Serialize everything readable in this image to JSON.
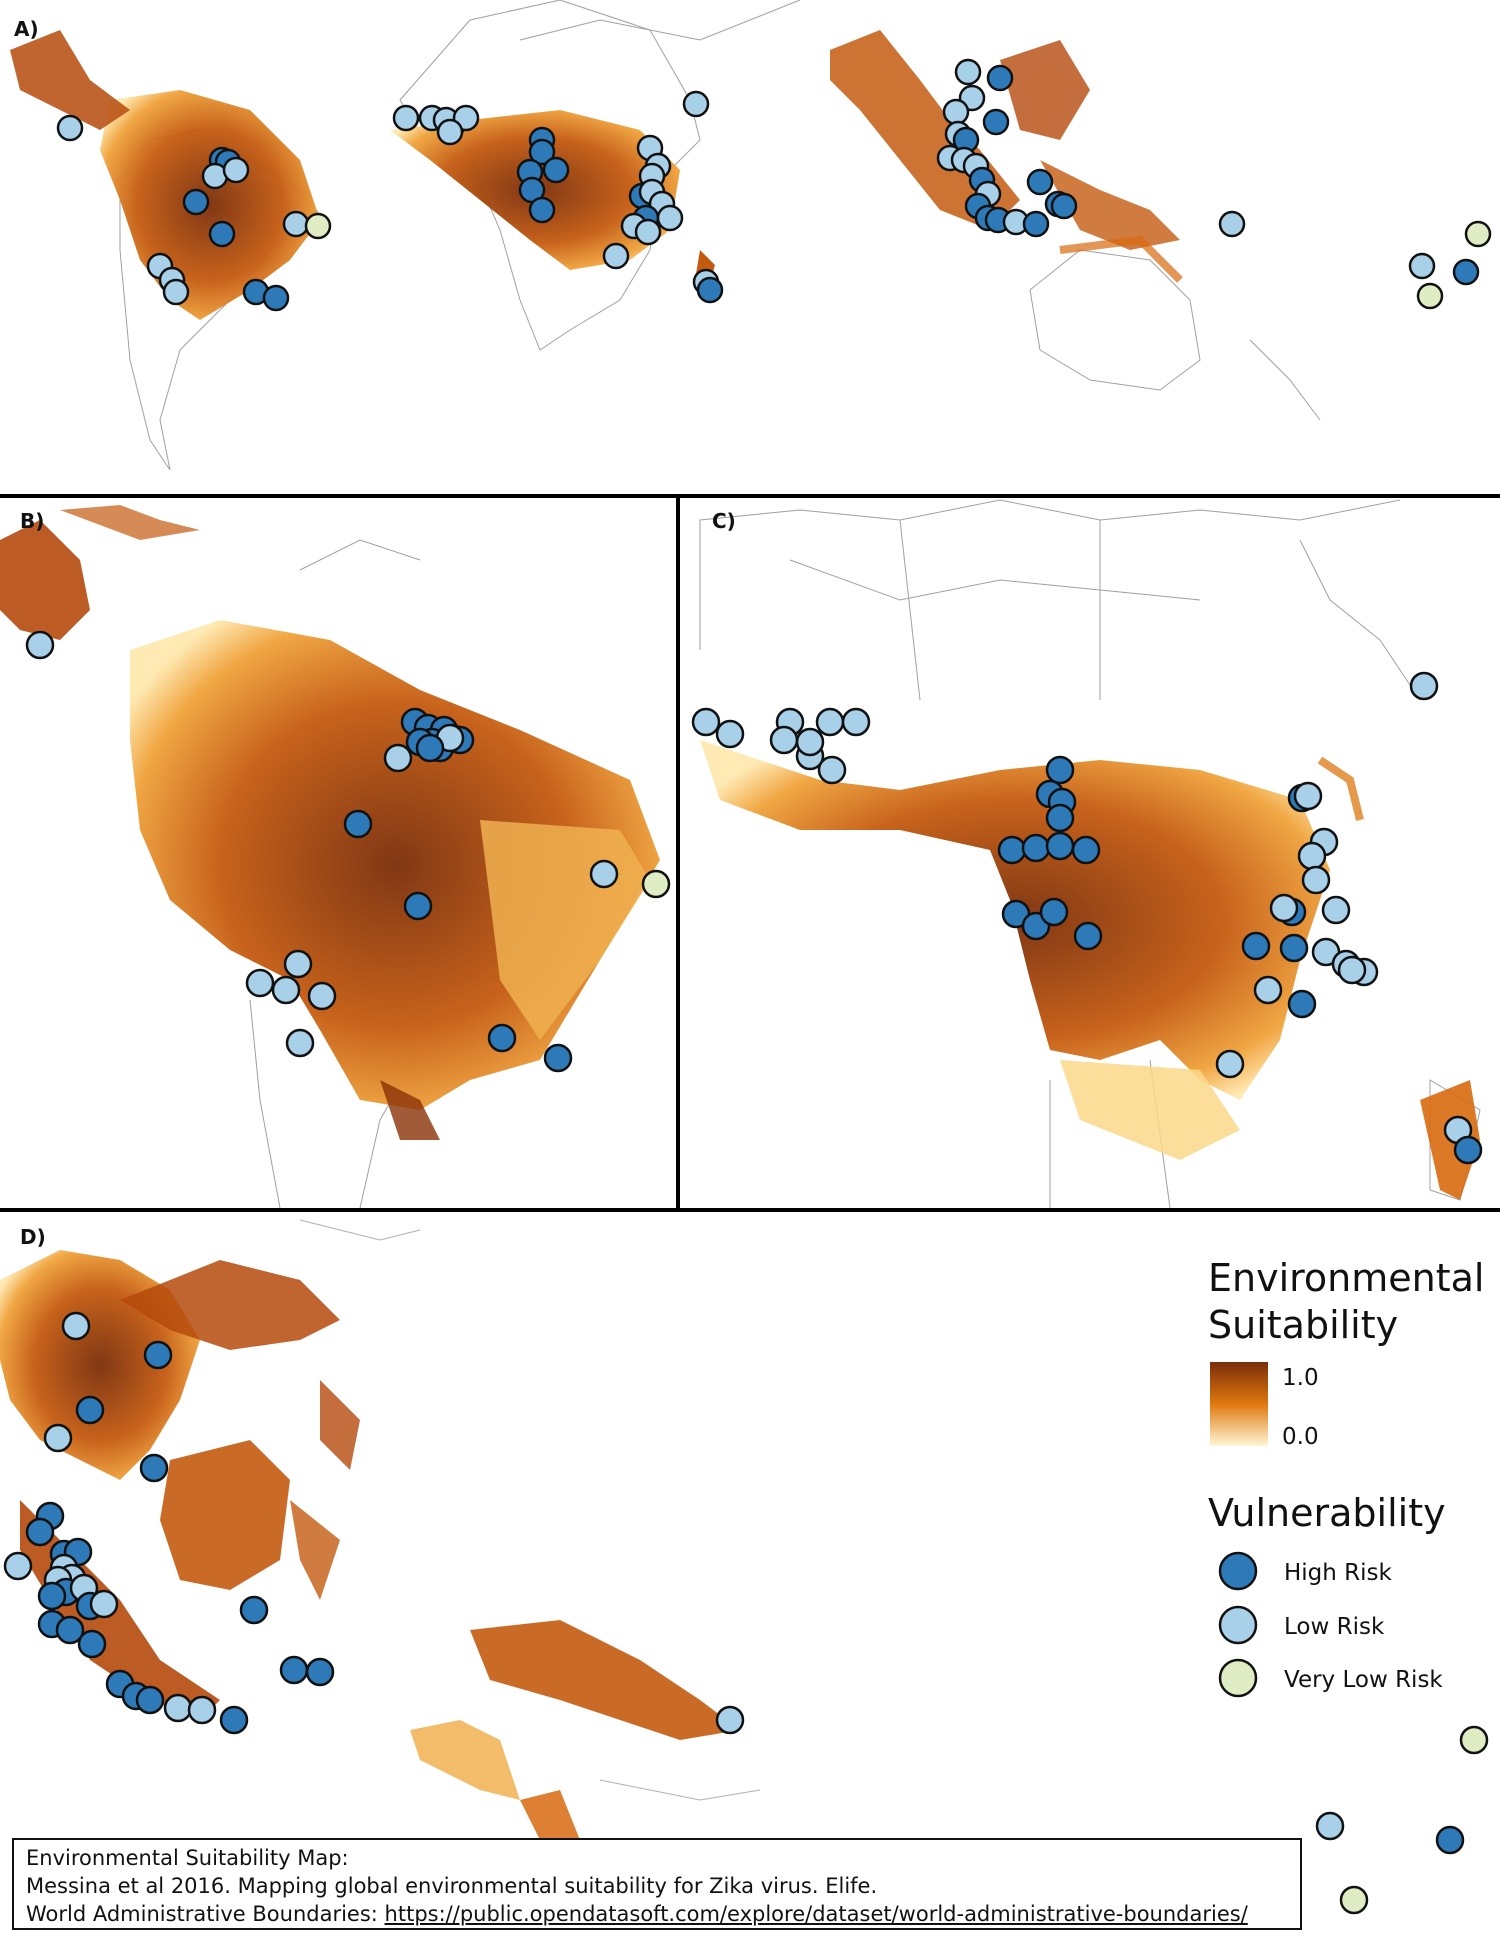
{
  "panels": {
    "a": {
      "label": "A)"
    },
    "b": {
      "label": "B)"
    },
    "c": {
      "label": "C)"
    },
    "d": {
      "label": "D)"
    }
  },
  "colors": {
    "high_risk": "#2e7ab8",
    "low_risk": "#a8d0e8",
    "very_low_risk": "#e0ecc4",
    "suitability_high": "#7a2d08",
    "suitability_mid": "#e0780f",
    "suitability_low": "#fff7d6",
    "borders": "#9a9a9a"
  },
  "legend": {
    "suitability_title_line1": "Environmental",
    "suitability_title_line2": "Suitability",
    "scale_max": "1.0",
    "scale_min": "0.0",
    "vulnerability_title": "Vulnerability",
    "items": [
      {
        "label": "High Risk",
        "color": "#2e7ab8"
      },
      {
        "label": "Low Risk",
        "color": "#a8d0e8"
      },
      {
        "label": "Very Low Risk",
        "color": "#e0ecc4"
      }
    ]
  },
  "credits": {
    "line1": "Environmental Suitability Map:",
    "line2": "Messina et al 2016. Mapping global environmental suitability for Zika virus. Elife.",
    "line3_prefix": "World Administrative Boundaries: ",
    "line3_url": "https://public.opendatasoft.com/explore/dataset/world-administrative-boundaries/"
  }
}
